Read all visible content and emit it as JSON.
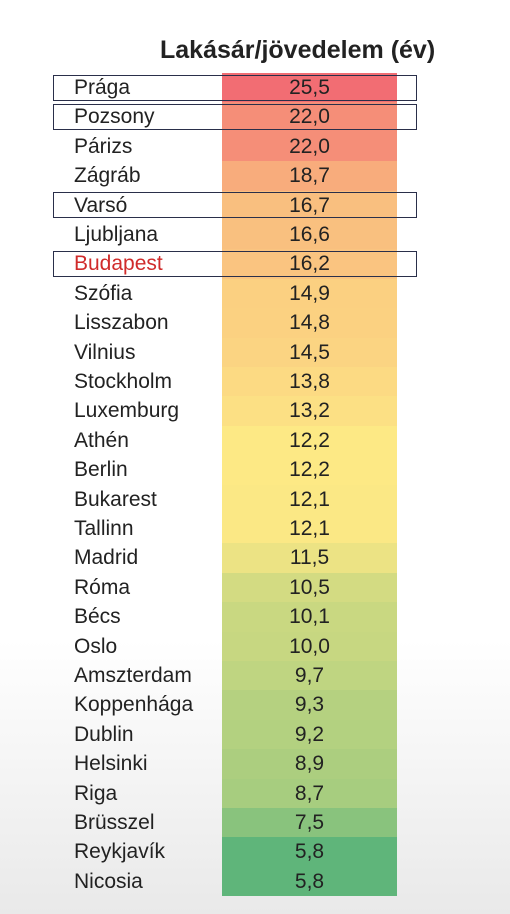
{
  "chart_data": {
    "type": "table",
    "title": "Lakásár/jövedelem (év)",
    "categories": [
      "Prága",
      "Pozsony",
      "Párizs",
      "Zágráb",
      "Varsó",
      "Ljubljana",
      "Budapest",
      "Szófia",
      "Lisszabon",
      "Vilnius",
      "Stockholm",
      "Luxemburg",
      "Athén",
      "Berlin",
      "Bukarest",
      "Tallinn",
      "Madrid",
      "Róma",
      "Bécs",
      "Oslo",
      "Amszterdam",
      "Koppenhága",
      "Dublin",
      "Helsinki",
      "Riga",
      "Brüsszel",
      "Reykjavík",
      "Nicosia"
    ],
    "values": [
      25.5,
      22.0,
      22.0,
      18.7,
      16.7,
      16.6,
      16.2,
      14.9,
      14.8,
      14.5,
      13.8,
      13.2,
      12.2,
      12.2,
      12.1,
      12.1,
      11.5,
      10.5,
      10.1,
      10.0,
      9.7,
      9.3,
      9.2,
      8.9,
      8.7,
      7.5,
      5.8,
      5.8
    ],
    "value_labels": [
      "25,5",
      "22,0",
      "22,0",
      "18,7",
      "16,7",
      "16,6",
      "16,2",
      "14,9",
      "14,8",
      "14,5",
      "13,8",
      "13,2",
      "12,2",
      "12,2",
      "12,1",
      "12,1",
      "11,5",
      "10,5",
      "10,1",
      "10,0",
      "9,7",
      "9,3",
      "9,2",
      "8,9",
      "8,7",
      "7,5",
      "5,8",
      "5,8"
    ],
    "boxed": [
      "Prága",
      "Pozsony",
      "Varsó",
      "Budapest"
    ],
    "highlighted_text": [
      "Budapest"
    ],
    "colors": {
      "high": "#f26d73",
      "mid": "#fde985",
      "low": "#5fb57a",
      "highlight_text": "#d02b2b",
      "box_border": "#2a2f4a"
    }
  }
}
